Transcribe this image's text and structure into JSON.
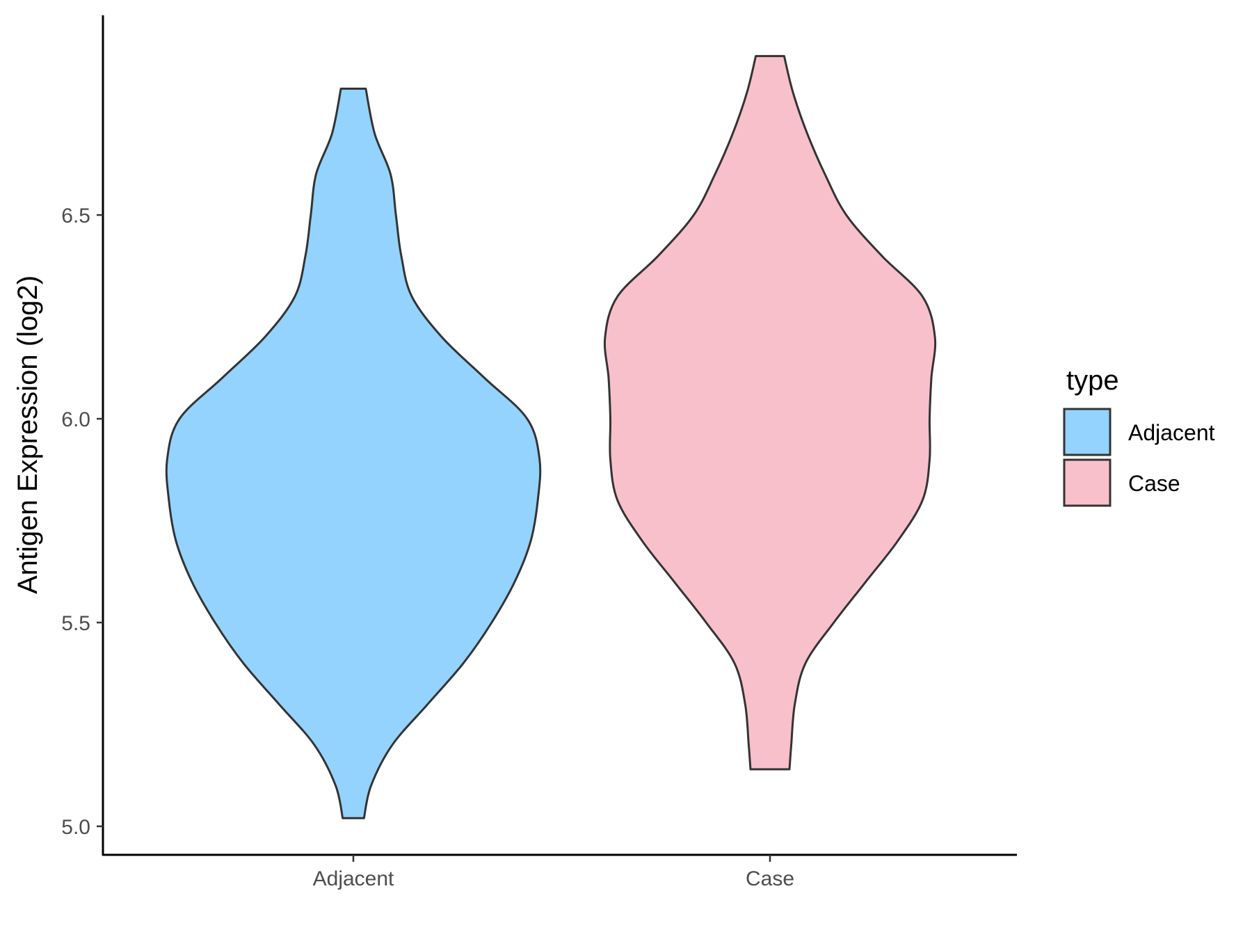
{
  "chart_data": {
    "type": "violin",
    "title": "",
    "xlabel": "",
    "ylabel": "Antigen Expression (log2)",
    "ylim": [
      4.93,
      6.99
    ],
    "yticks": [
      5.0,
      5.5,
      6.0,
      6.5
    ],
    "ytick_labels": [
      "5.0",
      "5.5",
      "6.0",
      "6.5"
    ],
    "categories": [
      "Adjacent",
      "Case"
    ],
    "grid": false,
    "legend": {
      "title": "type",
      "placement": "right",
      "items": [
        {
          "label": "Adjacent",
          "color": "#93d3fd"
        },
        {
          "label": "Case",
          "color": "#f8c0cb"
        }
      ]
    },
    "series": [
      {
        "name": "Adjacent",
        "color": "#93d3fd",
        "min": 5.02,
        "max": 6.81,
        "density_profile": [
          [
            5.02,
            0.06
          ],
          [
            5.1,
            0.1
          ],
          [
            5.2,
            0.22
          ],
          [
            5.3,
            0.42
          ],
          [
            5.4,
            0.62
          ],
          [
            5.5,
            0.78
          ],
          [
            5.6,
            0.91
          ],
          [
            5.7,
            1.0
          ],
          [
            5.8,
            1.04
          ],
          [
            5.9,
            1.05
          ],
          [
            6.0,
            0.98
          ],
          [
            6.1,
            0.74
          ],
          [
            6.2,
            0.5
          ],
          [
            6.3,
            0.33
          ],
          [
            6.4,
            0.27
          ],
          [
            6.5,
            0.24
          ],
          [
            6.6,
            0.21
          ],
          [
            6.7,
            0.12
          ],
          [
            6.81,
            0.07
          ]
        ]
      },
      {
        "name": "Case",
        "color": "#f8c0cb",
        "min": 5.14,
        "max": 6.89,
        "density_profile": [
          [
            5.14,
            0.11
          ],
          [
            5.2,
            0.12
          ],
          [
            5.3,
            0.14
          ],
          [
            5.4,
            0.2
          ],
          [
            5.5,
            0.36
          ],
          [
            5.6,
            0.54
          ],
          [
            5.7,
            0.72
          ],
          [
            5.8,
            0.86
          ],
          [
            5.9,
            0.9
          ],
          [
            6.0,
            0.9
          ],
          [
            6.1,
            0.91
          ],
          [
            6.2,
            0.93
          ],
          [
            6.3,
            0.86
          ],
          [
            6.4,
            0.63
          ],
          [
            6.5,
            0.43
          ],
          [
            6.6,
            0.31
          ],
          [
            6.7,
            0.21
          ],
          [
            6.8,
            0.13
          ],
          [
            6.89,
            0.08
          ]
        ]
      }
    ]
  }
}
